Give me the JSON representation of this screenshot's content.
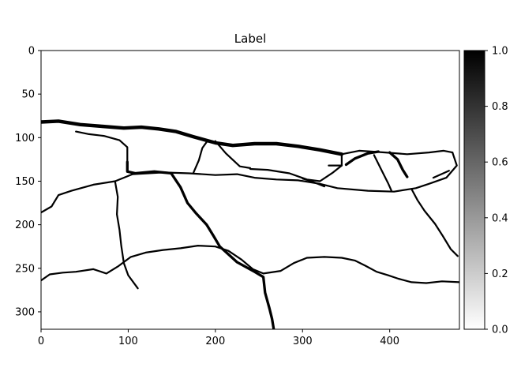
{
  "chart_data": {
    "type": "heatmap",
    "title": "Label",
    "xlim": [
      0,
      480
    ],
    "ylim": [
      320,
      0
    ],
    "x_ticks": [
      0,
      100,
      200,
      300,
      400
    ],
    "y_ticks": [
      0,
      50,
      100,
      150,
      200,
      250,
      300
    ],
    "colorbar": {
      "range": [
        0.0,
        1.0
      ],
      "ticks": [
        "0.0",
        "0.2",
        "0.4",
        "0.6",
        "0.8",
        "1.0"
      ],
      "colormap": "gray_r"
    },
    "background_value": 0,
    "crack_value": 1,
    "crack_paths": [
      {
        "w": 4,
        "pts": [
          [
            0,
            82
          ],
          [
            20,
            81
          ],
          [
            45,
            85
          ],
          [
            70,
            87
          ],
          [
            95,
            89
          ],
          [
            115,
            88
          ],
          [
            135,
            90
          ],
          [
            155,
            93
          ],
          [
            175,
            99
          ],
          [
            200,
            106
          ],
          [
            220,
            109
          ],
          [
            245,
            107
          ],
          [
            270,
            107
          ],
          [
            295,
            110
          ],
          [
            320,
            114
          ],
          [
            345,
            119
          ]
        ]
      },
      {
        "w": 2,
        "pts": [
          [
            345,
            119
          ],
          [
            365,
            115
          ],
          [
            395,
            117
          ],
          [
            420,
            119
          ],
          [
            445,
            117
          ],
          [
            462,
            115
          ],
          [
            472,
            117
          ]
        ]
      },
      {
        "w": 2,
        "pts": [
          [
            0,
            186
          ],
          [
            12,
            179
          ],
          [
            20,
            166
          ],
          [
            35,
            161
          ],
          [
            60,
            154
          ],
          [
            85,
            150
          ],
          [
            105,
            142
          ],
          [
            140,
            140
          ],
          [
            170,
            141
          ],
          [
            200,
            143
          ],
          [
            225,
            142
          ],
          [
            245,
            146
          ],
          [
            270,
            148
          ],
          [
            295,
            149
          ],
          [
            320,
            153
          ],
          [
            340,
            158
          ],
          [
            375,
            161
          ],
          [
            405,
            162
          ],
          [
            430,
            158
          ],
          [
            445,
            153
          ],
          [
            465,
            146
          ],
          [
            477,
            132
          ],
          [
            472,
            117
          ]
        ]
      },
      {
        "w": 3,
        "pts": [
          [
            350,
            131
          ],
          [
            360,
            124
          ],
          [
            375,
            118
          ],
          [
            387,
            116
          ]
        ]
      },
      {
        "w": 2,
        "pts": [
          [
            345,
            120
          ],
          [
            345,
            132
          ],
          [
            335,
            140
          ],
          [
            320,
            150
          ],
          [
            305,
            148
          ],
          [
            285,
            141
          ],
          [
            260,
            137
          ],
          [
            240,
            136
          ]
        ]
      },
      {
        "w": 2,
        "pts": [
          [
            330,
            132
          ],
          [
            345,
            132
          ]
        ]
      },
      {
        "w": 2,
        "pts": [
          [
            200,
            104
          ],
          [
            212,
            118
          ],
          [
            228,
            133
          ],
          [
            240,
            135
          ]
        ]
      },
      {
        "w": 2,
        "pts": [
          [
            190,
            105
          ],
          [
            185,
            112
          ],
          [
            181,
            126
          ],
          [
            175,
            140
          ]
        ]
      },
      {
        "w": 3,
        "pts": [
          [
            99,
            128
          ],
          [
            99,
            139
          ],
          [
            108,
            141
          ],
          [
            130,
            139
          ],
          [
            150,
            141
          ]
        ]
      },
      {
        "w": 2,
        "pts": [
          [
            40,
            93
          ],
          [
            55,
            96
          ],
          [
            72,
            98
          ],
          [
            90,
            103
          ],
          [
            99,
            111
          ],
          [
            99,
            128
          ]
        ]
      },
      {
        "w": 3,
        "pts": [
          [
            400,
            117
          ],
          [
            409,
            125
          ],
          [
            415,
            137
          ],
          [
            420,
            145
          ]
        ]
      },
      {
        "w": 2,
        "pts": [
          [
            382,
            120
          ],
          [
            391,
            138
          ],
          [
            398,
            152
          ],
          [
            402,
            161
          ]
        ]
      },
      {
        "w": 2,
        "pts": [
          [
            300,
            147
          ],
          [
            310,
            150
          ],
          [
            325,
            156
          ]
        ]
      },
      {
        "w": 2,
        "pts": [
          [
            450,
            146
          ],
          [
            468,
            138
          ]
        ]
      },
      {
        "w": 2,
        "pts": [
          [
            425,
            159
          ],
          [
            432,
            172
          ],
          [
            440,
            184
          ],
          [
            452,
            199
          ],
          [
            461,
            213
          ],
          [
            470,
            228
          ],
          [
            478,
            236
          ]
        ]
      },
      {
        "w": 2,
        "pts": [
          [
            85,
            151
          ],
          [
            88,
            168
          ],
          [
            87,
            188
          ],
          [
            90,
            206
          ],
          [
            92,
            224
          ],
          [
            95,
            244
          ],
          [
            100,
            258
          ],
          [
            111,
            273
          ]
        ]
      },
      {
        "w": 3,
        "pts": [
          [
            150,
            142
          ],
          [
            160,
            157
          ],
          [
            168,
            175
          ],
          [
            178,
            187
          ],
          [
            190,
            200
          ],
          [
            198,
            213
          ],
          [
            205,
            225
          ],
          [
            215,
            234
          ],
          [
            225,
            243
          ],
          [
            245,
            254
          ],
          [
            255,
            260
          ],
          [
            257,
            278
          ],
          [
            262,
            296
          ],
          [
            265,
            308
          ],
          [
            267,
            320
          ]
        ]
      },
      {
        "w": 2,
        "pts": [
          [
            0,
            264
          ],
          [
            10,
            257
          ],
          [
            25,
            255
          ],
          [
            40,
            254
          ],
          [
            60,
            251
          ],
          [
            75,
            256
          ],
          [
            88,
            248
          ],
          [
            103,
            237
          ],
          [
            120,
            232
          ],
          [
            140,
            229
          ],
          [
            160,
            227
          ],
          [
            180,
            224
          ],
          [
            200,
            225
          ],
          [
            215,
            230
          ],
          [
            230,
            240
          ],
          [
            243,
            251
          ],
          [
            255,
            256
          ],
          [
            275,
            253
          ],
          [
            290,
            244
          ],
          [
            305,
            238
          ],
          [
            325,
            237
          ],
          [
            345,
            238
          ],
          [
            360,
            241
          ],
          [
            372,
            247
          ],
          [
            385,
            254
          ],
          [
            398,
            258
          ],
          [
            410,
            262
          ],
          [
            425,
            266
          ],
          [
            442,
            267
          ],
          [
            460,
            265
          ],
          [
            480,
            266
          ]
        ]
      }
    ]
  }
}
